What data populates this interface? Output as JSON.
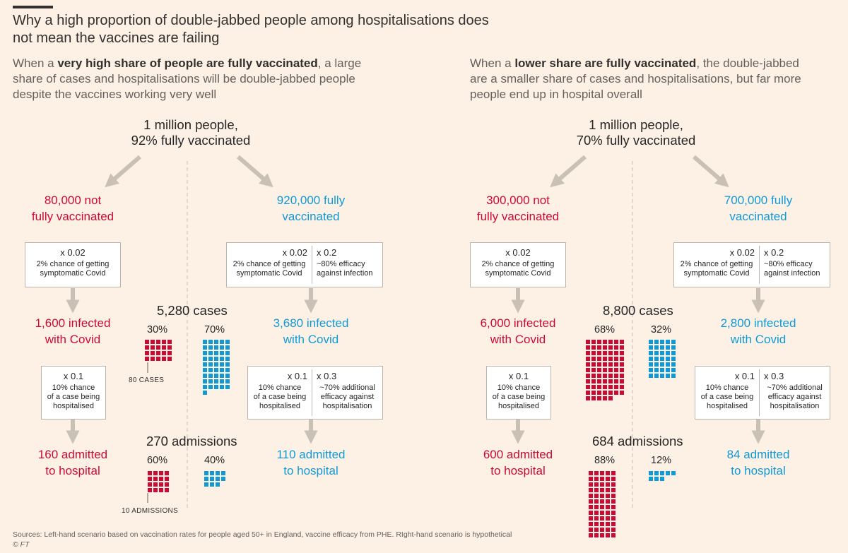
{
  "title": "Why a high proportion of double-jabbed people among hospitalisations does not mean the vaccines are failing",
  "left": {
    "intro_pre": "When a ",
    "intro_bold": "very high share of people are fully vaccinated",
    "intro_post": ", a large share of cases and hospitalisations will be double-jabbed people despite the vaccines working very well",
    "population_line1": "1 million people,",
    "population_line2": "92% fully vaccinated",
    "unvax": {
      "group_line1": "80,000 not",
      "group_line2": "fully vaccinated",
      "box1": {
        "mult": "x 0.02",
        "desc1": "2% chance of getting",
        "desc2": "symptomatic Covid"
      },
      "infected_line1": "1,600 infected",
      "infected_line2": "with Covid",
      "box2": {
        "mult": "x 0.1",
        "desc1": "10% chance",
        "desc2": "of a case being",
        "desc3": "hospitalised"
      },
      "admitted_line1": "160 admitted",
      "admitted_line2": "to hospital"
    },
    "vax": {
      "group_line1": "920,000 fully",
      "group_line2": "vaccinated",
      "box1a": {
        "mult": "x 0.02",
        "desc1": "2% chance of getting",
        "desc2": "symptomatic Covid"
      },
      "box1b": {
        "mult": "x 0.2",
        "desc1": "~80% efficacy",
        "desc2": "against infection"
      },
      "infected_line1": "3,680 infected",
      "infected_line2": "with Covid",
      "box2a": {
        "mult": "x 0.1",
        "desc1": "10% chance",
        "desc2": "of a case being",
        "desc3": "hospitalised"
      },
      "box2b": {
        "mult": "x 0.3",
        "desc1": "~70% additional",
        "desc2": "efficacy against",
        "desc3": "hospitalisation"
      },
      "admitted_line1": "110 admitted",
      "admitted_line2": "to hospital"
    },
    "cases_title": "5,280 cases",
    "cases_unvax_pct": "30%",
    "cases_vax_pct": "70%",
    "cases_unit_label": "80 CASES",
    "adm_title": "270 admissions",
    "adm_unvax_pct": "60%",
    "adm_vax_pct": "40%",
    "adm_unit_label": "10 ADMISSIONS"
  },
  "right": {
    "intro_pre": "When a ",
    "intro_bold": "lower share are fully vaccinated",
    "intro_post": ", the double-jabbed are a smaller share of cases and hospitalisations, but far more people end up in hospital overall",
    "population_line1": "1 million people,",
    "population_line2": "70% fully vaccinated",
    "unvax": {
      "group_line1": "300,000 not",
      "group_line2": "fully vaccinated",
      "box1": {
        "mult": "x 0.02",
        "desc1": "2% chance of getting",
        "desc2": "symptomatic Covid"
      },
      "infected_line1": "6,000 infected",
      "infected_line2": "with Covid",
      "box2": {
        "mult": "x 0.1",
        "desc1": "10% chance",
        "desc2": "of a case being",
        "desc3": "hospitalised"
      },
      "admitted_line1": "600 admitted",
      "admitted_line2": "to hospital"
    },
    "vax": {
      "group_line1": "700,000 fully",
      "group_line2": "vaccinated",
      "box1a": {
        "mult": "x 0.02",
        "desc1": "2% chance of getting",
        "desc2": "symptomatic Covid"
      },
      "box1b": {
        "mult": "x 0.2",
        "desc1": "~80% efficacy",
        "desc2": "against infection"
      },
      "infected_line1": "2,800 infected",
      "infected_line2": "with Covid",
      "box2a": {
        "mult": "x 0.1",
        "desc1": "10% chance",
        "desc2": "of a case being",
        "desc3": "hospitalised"
      },
      "box2b": {
        "mult": "x 0.3",
        "desc1": "~70% additional",
        "desc2": "efficacy against",
        "desc3": "hospitalisation"
      },
      "admitted_line1": "84 admitted",
      "admitted_line2": "to hospital"
    },
    "cases_title": "8,800 cases",
    "cases_unvax_pct": "68%",
    "cases_vax_pct": "32%",
    "adm_title": "684 admissions",
    "adm_unvax_pct": "88%",
    "adm_vax_pct": "12%"
  },
  "waffles": {
    "left_cases_unvax": 20,
    "left_cases_vax": 46,
    "left_adm_unvax": 16,
    "left_adm_vax": 11,
    "right_cases_unvax": 75,
    "right_cases_vax": 35,
    "right_adm_unvax": 60,
    "right_adm_vax": 8
  },
  "colors": {
    "unvax": "#CC0A35",
    "vax": "#0F9AD6",
    "arrow": "#C9C0B6",
    "background": "#FDF1E6"
  },
  "footer": {
    "sources": "Sources: Left-hand scenario based on vaccination rates for people aged 50+ in England, vaccine efficacy from PHE. RIght-hand scenario is hypothetical",
    "credit": "© FT"
  }
}
